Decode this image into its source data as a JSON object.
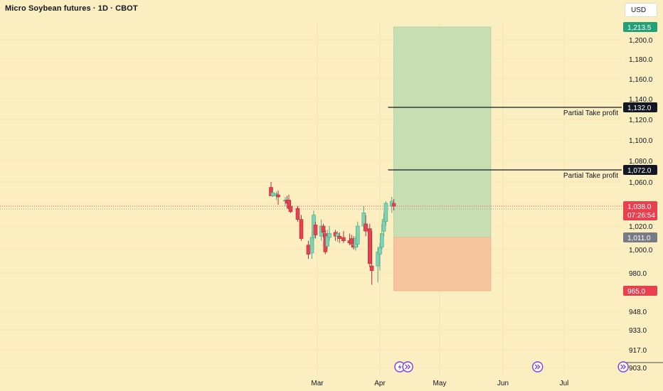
{
  "header": {
    "title": "Micro Soybean futures · 1D · CBOT",
    "currency": "USD"
  },
  "colors": {
    "background": "#fbeec0",
    "up": "#7ed3b2",
    "down": "#e8404f",
    "profit_zone": "#c8dfb4",
    "loss_zone": "#f6c49f",
    "tag_dark": "#131722",
    "tag_green": "#22a07a",
    "tag_red": "#e8404f",
    "tag_gray": "#787b86",
    "event_icon": "#7b3fe4"
  },
  "chart_data": {
    "type": "candlestick",
    "y_axis": {
      "tick_labels": [
        "1,200.0",
        "1,180.0",
        "1,160.0",
        "1,140.0",
        "1,120.0",
        "1,100.0",
        "1,080.0",
        "1,060.0",
        "1,040.0",
        "1,020.0",
        "1,000.0",
        "980.0",
        "948.0",
        "933.0",
        "917.0",
        "903.0"
      ],
      "tick_values": [
        1200,
        1180,
        1160,
        1140,
        1120,
        1100,
        1080,
        1060,
        1040,
        1020,
        1000,
        980,
        948,
        933,
        917,
        903
      ],
      "range": [
        895,
        1225
      ]
    },
    "x_axis": {
      "labels": [
        "Mar",
        "Apr",
        "May",
        "Jun",
        "Jul"
      ],
      "label_dates": [
        "2025-03-01",
        "2025-04-01",
        "2025-05-01",
        "2025-06-01",
        "2025-07-01"
      ],
      "range": [
        "2024-12-27",
        "2025-08-22"
      ]
    },
    "candles": [
      {
        "date": "2025-02-03",
        "o": 1055,
        "h": 1060,
        "l": 1049,
        "c": 1047
      },
      {
        "date": "2025-02-04",
        "o": 1047,
        "h": 1052,
        "l": 1046,
        "c": 1050
      },
      {
        "date": "2025-02-06",
        "o": 1047,
        "h": 1051,
        "l": 1043,
        "c": 1049
      },
      {
        "date": "2025-02-07",
        "o": 1048,
        "h": 1052,
        "l": 1039,
        "c": 1046
      },
      {
        "date": "2025-02-11",
        "o": 1042,
        "h": 1046,
        "l": 1038,
        "c": 1043
      },
      {
        "date": "2025-02-12",
        "o": 1043,
        "h": 1047,
        "l": 1040,
        "c": 1040
      },
      {
        "date": "2025-02-13",
        "o": 1043,
        "h": 1048,
        "l": 1035,
        "c": 1036
      },
      {
        "date": "2025-02-14",
        "o": 1038,
        "h": 1043,
        "l": 1032,
        "c": 1033
      },
      {
        "date": "2025-02-18",
        "o": 1036,
        "h": 1038,
        "l": 1024,
        "c": 1026
      },
      {
        "date": "2025-02-20",
        "o": 1026,
        "h": 1030,
        "l": 1008,
        "c": 1010
      },
      {
        "date": "2025-02-24",
        "o": 1004,
        "h": 1008,
        "l": 992,
        "c": 996
      },
      {
        "date": "2025-02-26",
        "o": 997,
        "h": 1016,
        "l": 992,
        "c": 1011
      },
      {
        "date": "2025-02-27",
        "o": 1011,
        "h": 1034,
        "l": 1008,
        "c": 1030
      },
      {
        "date": "2025-02-28",
        "o": 1021,
        "h": 1024,
        "l": 1010,
        "c": 1013
      },
      {
        "date": "2025-03-03",
        "o": 1012,
        "h": 1026,
        "l": 1008,
        "c": 1020
      },
      {
        "date": "2025-03-04",
        "o": 1020,
        "h": 1022,
        "l": 1011,
        "c": 1015
      },
      {
        "date": "2025-03-05",
        "o": 1014,
        "h": 1017,
        "l": 996,
        "c": 998
      },
      {
        "date": "2025-03-06",
        "o": 1003,
        "h": 1017,
        "l": 1000,
        "c": 1012
      },
      {
        "date": "2025-03-07",
        "o": 1011,
        "h": 1020,
        "l": 1008,
        "c": 1014
      },
      {
        "date": "2025-03-10",
        "o": 1015,
        "h": 1017,
        "l": 1008,
        "c": 1012
      },
      {
        "date": "2025-03-11",
        "o": 1012,
        "h": 1016,
        "l": 1007,
        "c": 1014
      },
      {
        "date": "2025-03-12",
        "o": 1012,
        "h": 1015,
        "l": 1006,
        "c": 1010
      },
      {
        "date": "2025-03-14",
        "o": 1011,
        "h": 1016,
        "l": 1006,
        "c": 1008
      },
      {
        "date": "2025-03-17",
        "o": 1008,
        "h": 1014,
        "l": 1004,
        "c": 1006
      },
      {
        "date": "2025-03-18",
        "o": 1010,
        "h": 1013,
        "l": 1002,
        "c": 1005
      },
      {
        "date": "2025-03-19",
        "o": 1004,
        "h": 1012,
        "l": 1000,
        "c": 1002
      },
      {
        "date": "2025-03-20",
        "o": 1002,
        "h": 1012,
        "l": 999,
        "c": 1010
      },
      {
        "date": "2025-03-21",
        "o": 1005,
        "h": 1024,
        "l": 1002,
        "c": 1020
      },
      {
        "date": "2025-03-24",
        "o": 1020,
        "h": 1038,
        "l": 1016,
        "c": 1032
      },
      {
        "date": "2025-03-25",
        "o": 1022,
        "h": 1030,
        "l": 1012,
        "c": 1016
      },
      {
        "date": "2025-03-27",
        "o": 1018,
        "h": 1022,
        "l": 985,
        "c": 988
      },
      {
        "date": "2025-03-28",
        "o": 986,
        "h": 1016,
        "l": 970,
        "c": 982
      },
      {
        "date": "2025-03-31",
        "o": 986,
        "h": 1002,
        "l": 972,
        "c": 998
      },
      {
        "date": "2025-04-01",
        "o": 996,
        "h": 1006,
        "l": 982,
        "c": 1002
      },
      {
        "date": "2025-04-02",
        "o": 1002,
        "h": 1022,
        "l": 1000,
        "c": 1014
      },
      {
        "date": "2025-04-03",
        "o": 1016,
        "h": 1032,
        "l": 1012,
        "c": 1026
      },
      {
        "date": "2025-04-04",
        "o": 1024,
        "h": 1042,
        "l": 1020,
        "c": 1040
      },
      {
        "date": "2025-04-07",
        "o": 1038,
        "h": 1046,
        "l": 1032,
        "c": 1042
      },
      {
        "date": "2025-04-08",
        "o": 1040,
        "h": 1044,
        "l": 1034,
        "c": 1038
      }
    ],
    "current_price": 1038.0,
    "countdown": "07:26:54",
    "position": {
      "type": "long",
      "start_date": "2025-04-08",
      "end_date": "2025-05-26",
      "entry": 1011.0,
      "target": 1213.5,
      "stop": 965.0
    },
    "horizontal_lines": [
      {
        "price": 1132.0,
        "start_date": "2025-04-08",
        "label": "Partial Take profit"
      },
      {
        "price": 1072.0,
        "start_date": "2025-04-08",
        "label": "Partial Take profit"
      }
    ],
    "price_tags": [
      {
        "price": 1213.5,
        "text": "1,213.5",
        "style": "green"
      },
      {
        "price": 1132.0,
        "text": "1,132.0",
        "style": "dark"
      },
      {
        "price": 1072.0,
        "text": "1,072.0",
        "style": "dark"
      },
      {
        "price": 1011.0,
        "text": "1,011.0",
        "style": "gray"
      },
      {
        "price": 965.0,
        "text": "965.0",
        "style": "red"
      }
    ],
    "events": [
      {
        "date": "2025-04-11",
        "icon": "lightning-event-icon"
      },
      {
        "date": "2025-04-15",
        "icon": "fast-forward-icon"
      },
      {
        "date": "2025-06-18",
        "icon": "fast-forward-icon"
      },
      {
        "date": "2025-07-30",
        "icon": "fast-forward-icon"
      }
    ]
  }
}
